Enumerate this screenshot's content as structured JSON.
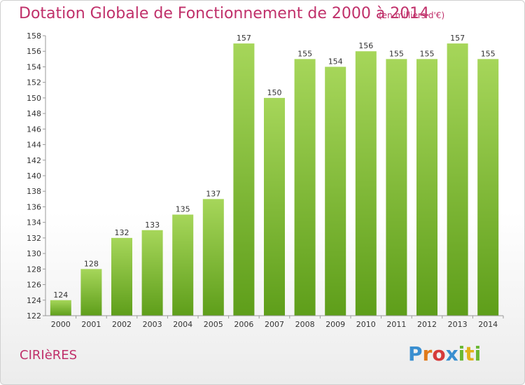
{
  "header": {
    "title": "Dotation Globale de Fonctionnement de 2000 à 2014",
    "unit": "(en milliers d'€)"
  },
  "footer": {
    "commune": "CIRIèRES",
    "logo_letters": [
      "P",
      "r",
      "o",
      "x",
      "i",
      "t",
      "i"
    ],
    "logo_colors": [
      "#3a8fd0",
      "#e07a1a",
      "#d63a3a",
      "#3a8fd0",
      "#6ab832",
      "#e0b21a",
      "#6ab832"
    ]
  },
  "colors": {
    "bar_light": "#a6d65a",
    "bar_dark": "#5e9e1a",
    "axis": "#999999",
    "grid": "#cccccc"
  },
  "chart_data": {
    "type": "bar",
    "categories": [
      "2000",
      "2001",
      "2002",
      "2003",
      "2004",
      "2005",
      "2006",
      "2007",
      "2008",
      "2009",
      "2010",
      "2011",
      "2012",
      "2013",
      "2014"
    ],
    "values": [
      124,
      128,
      132,
      133,
      135,
      137,
      157,
      150,
      155,
      154,
      156,
      155,
      155,
      157,
      155
    ],
    "title": "Dotation Globale de Fonctionnement de 2000 à 2014",
    "ylim": [
      122,
      158
    ],
    "yticks": [
      122,
      124,
      126,
      128,
      130,
      132,
      134,
      136,
      138,
      140,
      142,
      144,
      146,
      148,
      150,
      152,
      154,
      156,
      158
    ],
    "data_labels": true,
    "grid": false
  }
}
